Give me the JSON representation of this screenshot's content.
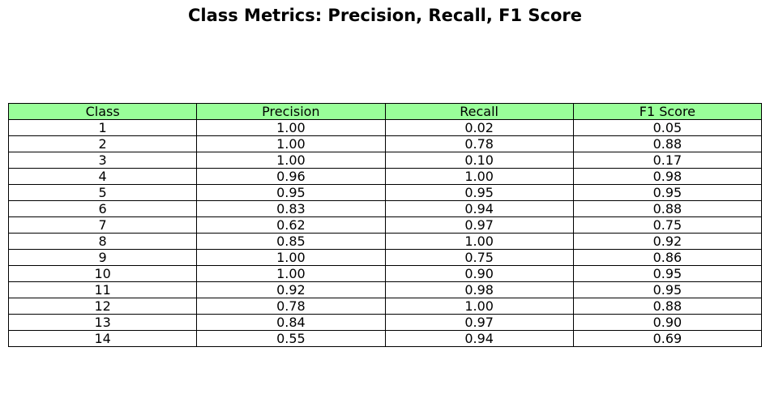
{
  "chart_data": {
    "type": "table",
    "title": "Class Metrics: Precision, Recall, F1 Score",
    "header_color": "#99ff99",
    "columns": [
      "Class",
      "Precision",
      "Recall",
      "F1 Score"
    ],
    "rows": [
      [
        "1",
        "1.00",
        "0.02",
        "0.05"
      ],
      [
        "2",
        "1.00",
        "0.78",
        "0.88"
      ],
      [
        "3",
        "1.00",
        "0.10",
        "0.17"
      ],
      [
        "4",
        "0.96",
        "1.00",
        "0.98"
      ],
      [
        "5",
        "0.95",
        "0.95",
        "0.95"
      ],
      [
        "6",
        "0.83",
        "0.94",
        "0.88"
      ],
      [
        "7",
        "0.62",
        "0.97",
        "0.75"
      ],
      [
        "8",
        "0.85",
        "1.00",
        "0.92"
      ],
      [
        "9",
        "1.00",
        "0.75",
        "0.86"
      ],
      [
        "10",
        "1.00",
        "0.90",
        "0.95"
      ],
      [
        "11",
        "0.92",
        "0.98",
        "0.95"
      ],
      [
        "12",
        "0.78",
        "1.00",
        "0.88"
      ],
      [
        "13",
        "0.84",
        "0.97",
        "0.90"
      ],
      [
        "14",
        "0.55",
        "0.94",
        "0.69"
      ]
    ]
  }
}
